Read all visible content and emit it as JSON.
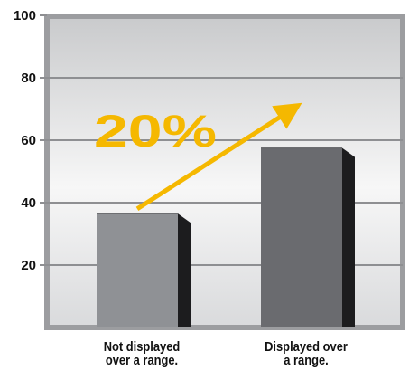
{
  "chart_data": {
    "type": "bar",
    "categories": [
      [
        "Not displayed",
        "over a range."
      ],
      [
        "Displayed over",
        "a range."
      ]
    ],
    "values": [
      36.5,
      57.5
    ],
    "ylim": [
      0,
      100
    ],
    "yticks": [
      20,
      40,
      60,
      80,
      100
    ],
    "grid": true,
    "bar_colors": [
      "#8f9195",
      "#6a6b6f"
    ],
    "annotation": {
      "text": "20%",
      "color": "#f5b800",
      "arrow": {
        "from": {
          "category": 0,
          "y": 38
        },
        "to": {
          "category": 1,
          "y": 70
        }
      }
    }
  }
}
